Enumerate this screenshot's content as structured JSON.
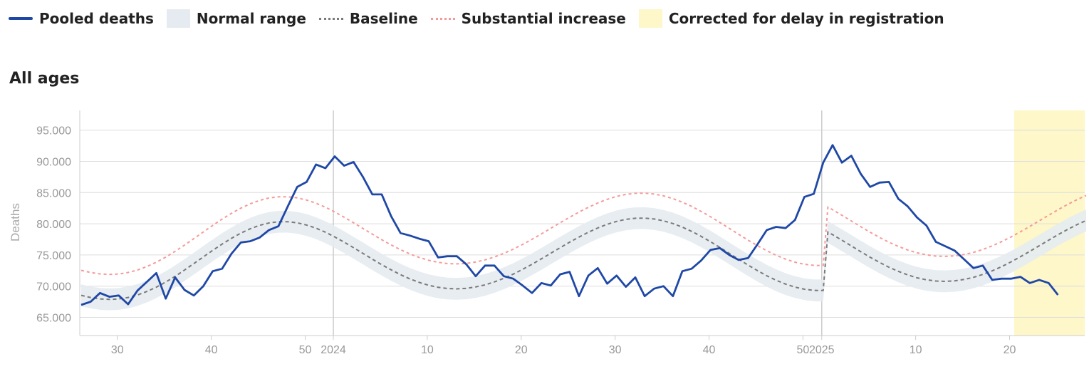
{
  "legend": {
    "pooled": "Pooled deaths",
    "normal_range": "Normal range",
    "baseline": "Baseline",
    "substantial": "Substantial increase",
    "corrected": "Corrected for delay in registration"
  },
  "colors": {
    "pooled": "#1f48a6",
    "normal_range": "#e6ebf1",
    "baseline": "#7a7a7a",
    "substantial": "#f59a9a",
    "corrected": "#fdf7c9",
    "grid": "#dddddd"
  },
  "chart_data": {
    "type": "line",
    "title": "All ages",
    "xlabel": "",
    "ylabel": "Deaths",
    "ylim": [
      62000,
      98000
    ],
    "y_ticks": [
      65000,
      70000,
      75000,
      80000,
      85000,
      90000,
      95000
    ],
    "y_tick_labels": [
      "65.000",
      "70.000",
      "75.000",
      "80.000",
      "85.000",
      "90.000",
      "95.000"
    ],
    "x_range": [
      0,
      107
    ],
    "x_index_note": "weeks since ISO week 26 of 2023",
    "x_ticks": [
      {
        "x": 4,
        "label": "30"
      },
      {
        "x": 14,
        "label": "40"
      },
      {
        "x": 24,
        "label": "50"
      },
      {
        "x": 27,
        "label": "2024"
      },
      {
        "x": 37,
        "label": "10"
      },
      {
        "x": 47,
        "label": "20"
      },
      {
        "x": 57,
        "label": "30"
      },
      {
        "x": 67,
        "label": "40"
      },
      {
        "x": 77,
        "label": "50"
      },
      {
        "x": 79,
        "label": "2025"
      },
      {
        "x": 89,
        "label": "10"
      },
      {
        "x": 99,
        "label": "20"
      }
    ],
    "year_lines": [
      27,
      79
    ],
    "corrected_from": 101,
    "grid": true,
    "legend_position": "top-left",
    "series": [
      {
        "name": "Pooled deaths",
        "values": [
          67000,
          67500,
          68900,
          68300,
          68500,
          67100,
          69300,
          70700,
          72100,
          68000,
          71400,
          69400,
          68500,
          70000,
          72400,
          72800,
          75200,
          77000,
          77200,
          77800,
          79000,
          79600,
          82800,
          85900,
          86700,
          89500,
          88900,
          90800,
          89300,
          89900,
          87500,
          84700,
          84700,
          81200,
          78500,
          78100,
          77600,
          77200,
          74600,
          74800,
          74800,
          73500,
          71600,
          73300,
          73300,
          71600,
          71200,
          70100,
          68900,
          70500,
          70100,
          71900,
          72300,
          68400,
          71700,
          72900,
          70400,
          71700,
          69900,
          71400,
          68400,
          69600,
          70000,
          68400,
          72400,
          72800,
          74100,
          75800,
          76100,
          75000,
          74200,
          74500,
          76700,
          79000,
          79500,
          79300,
          80600,
          84300,
          84800,
          89800,
          92600,
          89800,
          90900,
          88000,
          85900,
          86600,
          86700,
          84000,
          82800,
          81000,
          79700,
          77100,
          76400,
          75700,
          74300,
          72900,
          73300,
          71000,
          71200,
          71200,
          71500,
          70500,
          71000,
          70500,
          68600
        ]
      },
      {
        "name": "Baseline",
        "values": [
          68530,
          68190,
          67960,
          67880,
          67950,
          68190,
          68590,
          69150,
          69840,
          70660,
          71580,
          72580,
          73620,
          74680,
          75730,
          76740,
          77670,
          78500,
          79200,
          79750,
          80130,
          80320,
          80330,
          80150,
          79800,
          79290,
          78650,
          77890,
          77050,
          76160,
          75250,
          74330,
          73440,
          72610,
          71840,
          71170,
          70600,
          70140,
          69820,
          69620,
          69570,
          69650,
          69870,
          70210,
          70680,
          71260,
          71930,
          72690,
          73510,
          74380,
          75270,
          76160,
          77040,
          77870,
          78640,
          79330,
          79920,
          80380,
          80710,
          80880,
          80900,
          80760,
          80470,
          80030,
          79460,
          78780,
          77990,
          77130,
          76210,
          75260,
          74310,
          73380,
          72490,
          71670,
          70940,
          70330,
          69850,
          69510,
          69330,
          69310
        ]
      }
    ],
    "baseline_start_x": 0,
    "baseline_note": "baseline sampled at x = 0..107 via smooth curve",
    "normal_range_halfwidth": 1750,
    "substantial_offset": 4000
  }
}
